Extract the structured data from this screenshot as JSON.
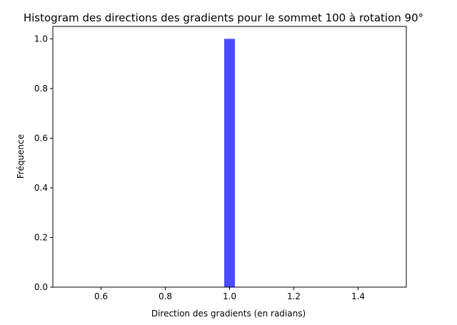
{
  "chart_data": {
    "type": "bar",
    "title": "Histogram des directions des gradients pour le sommet 100 à rotation 90°",
    "xlabel": "Direction des gradients (en radians)",
    "ylabel": "Fréquence",
    "xlim": [
      0.45,
      1.55
    ],
    "ylim": [
      0.0,
      1.05
    ],
    "xticks": [
      "0.6",
      "0.8",
      "1.0",
      "1.2",
      "1.4"
    ],
    "yticks": [
      "0.0",
      "0.2",
      "0.4",
      "0.6",
      "0.8",
      "1.0"
    ],
    "bins": [
      {
        "x_start": 0.9667,
        "x_end": 1.0333,
        "value": 0
      },
      {
        "x_start": 1.0,
        "x_end": 1.0,
        "value": 0
      }
    ],
    "bars": [
      {
        "x_start": 0.9833,
        "x_end": 1.0167,
        "value": 1.0
      }
    ],
    "bar_color": "#4b4bfd",
    "grid": false,
    "legend": "none"
  }
}
